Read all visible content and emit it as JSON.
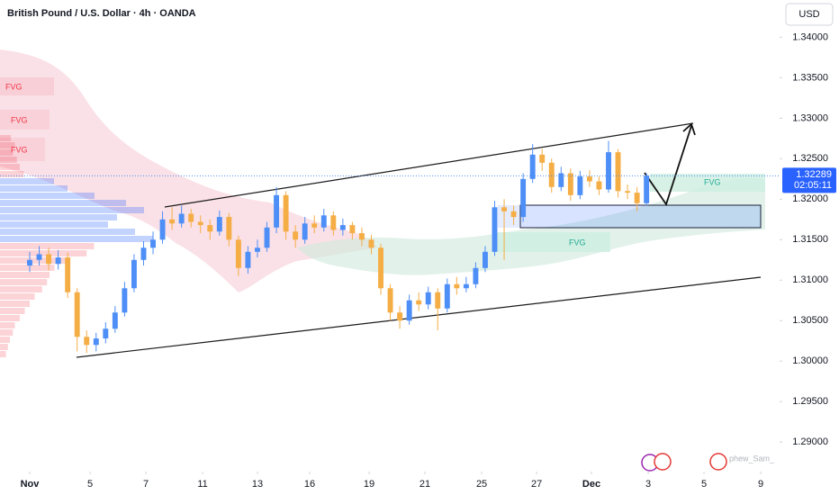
{
  "chart_data": {
    "type": "candlestick",
    "title": "British Pound / U.S. Dollar · 4h · OANDA",
    "currency": "USD",
    "watermark": "phew_Sam_",
    "annotations": [
      "FVG",
      "FVG",
      "FVG",
      "FVG",
      "FVG"
    ],
    "last_price": 1.32289,
    "countdown": "02:05:11",
    "up_color": "#4d8ef7",
    "down_color": "#f5ad45",
    "grid": false,
    "xlim": [
      -3.13,
      78.93
    ],
    "xticks": [
      {
        "value": 0,
        "label": "Nov"
      },
      {
        "value": 6.36,
        "label": "5"
      },
      {
        "value": 12.24,
        "label": "7"
      },
      {
        "value": 18.22,
        "label": "11"
      },
      {
        "value": 24.0,
        "label": "13"
      },
      {
        "value": 29.51,
        "label": "16"
      },
      {
        "value": 35.77,
        "label": "19"
      },
      {
        "value": 41.65,
        "label": "21"
      },
      {
        "value": 47.63,
        "label": "25"
      },
      {
        "value": 53.42,
        "label": "27"
      },
      {
        "value": 59.2,
        "label": "Dec"
      },
      {
        "value": 65.18,
        "label": "3"
      },
      {
        "value": 71.06,
        "label": "5"
      },
      {
        "value": 77.04,
        "label": "9"
      }
    ],
    "ylim": [
      1.2868,
      1.3446
    ],
    "yticks": [
      {
        "value": 1.29,
        "label": "1.29000"
      },
      {
        "value": 1.295,
        "label": "1.29500"
      },
      {
        "value": 1.3,
        "label": "1.30000"
      },
      {
        "value": 1.305,
        "label": "1.30500"
      },
      {
        "value": 1.31,
        "label": "1.31000"
      },
      {
        "value": 1.315,
        "label": "1.31500"
      },
      {
        "value": 1.32,
        "label": "1.32000"
      },
      {
        "value": 1.325,
        "label": "1.32500"
      },
      {
        "value": 1.33,
        "label": "1.33000"
      },
      {
        "value": 1.335,
        "label": "1.33500"
      },
      {
        "value": 1.34,
        "label": "1.34000"
      }
    ],
    "open": [
      1.3118,
      1.3125,
      1.3132,
      1.312,
      1.3128,
      1.3085,
      1.303,
      1.302,
      1.3028,
      1.304,
      1.306,
      1.309,
      1.3125,
      1.314,
      1.315,
      1.3175,
      1.317,
      1.3182,
      1.3172,
      1.3168,
      1.316,
      1.3178,
      1.315,
      1.3115,
      1.3135,
      1.314,
      1.3165,
      1.3205,
      1.316,
      1.315,
      1.317,
      1.3165,
      1.318,
      1.3162,
      1.3168,
      1.3158,
      1.315,
      1.314,
      1.309,
      1.306,
      1.305,
      1.3075,
      1.307,
      1.3085,
      1.3065,
      1.3095,
      1.309,
      1.3095,
      1.3115,
      1.3135,
      1.319,
      1.3185,
      1.3178,
      1.3225,
      1.3255,
      1.3245,
      1.3215,
      1.3232,
      1.3205,
      1.3228,
      1.3222,
      1.3212,
      1.3258,
      1.321,
      1.3208,
      1.3195
    ],
    "high": [
      1.3135,
      1.3142,
      1.314,
      1.3137,
      1.3134,
      1.309,
      1.3038,
      1.3035,
      1.3048,
      1.3068,
      1.3098,
      1.3132,
      1.3148,
      1.316,
      1.3185,
      1.319,
      1.3192,
      1.3188,
      1.318,
      1.3175,
      1.3186,
      1.3183,
      1.3155,
      1.3142,
      1.315,
      1.3172,
      1.3215,
      1.321,
      1.3168,
      1.3178,
      1.318,
      1.3188,
      1.3185,
      1.3176,
      1.3172,
      1.3165,
      1.3156,
      1.3145,
      1.3095,
      1.3068,
      1.3082,
      1.3085,
      1.3092,
      1.309,
      1.3102,
      1.3104,
      1.3104,
      1.3122,
      1.3142,
      1.3198,
      1.32,
      1.3192,
      1.3232,
      1.3268,
      1.3262,
      1.325,
      1.324,
      1.3238,
      1.3235,
      1.3236,
      1.3228,
      1.3272,
      1.3262,
      1.3218,
      1.3215,
      1.3232
    ],
    "low": [
      1.311,
      1.3118,
      1.3112,
      1.3113,
      1.3078,
      1.3012,
      1.301,
      1.3012,
      1.3022,
      1.3035,
      1.3055,
      1.3085,
      1.3118,
      1.3132,
      1.3145,
      1.3162,
      1.3165,
      1.3165,
      1.3158,
      1.315,
      1.3155,
      1.3142,
      1.3105,
      1.3108,
      1.3128,
      1.3135,
      1.3158,
      1.315,
      1.314,
      1.3145,
      1.3158,
      1.316,
      1.3155,
      1.3155,
      1.315,
      1.3142,
      1.3132,
      1.3082,
      1.305,
      1.304,
      1.3045,
      1.3062,
      1.3064,
      1.3038,
      1.306,
      1.3082,
      1.3085,
      1.309,
      1.311,
      1.313,
      1.3125,
      1.3168,
      1.3172,
      1.322,
      1.3235,
      1.3208,
      1.321,
      1.3198,
      1.32,
      1.3215,
      1.3205,
      1.3208,
      1.3202,
      1.32,
      1.3185,
      1.3192
    ],
    "close": [
      1.3125,
      1.3132,
      1.312,
      1.3128,
      1.3085,
      1.303,
      1.302,
      1.3028,
      1.304,
      1.306,
      1.309,
      1.3125,
      1.314,
      1.315,
      1.3175,
      1.317,
      1.3182,
      1.3172,
      1.3168,
      1.316,
      1.3178,
      1.315,
      1.3115,
      1.3135,
      1.314,
      1.3165,
      1.3205,
      1.316,
      1.315,
      1.317,
      1.3165,
      1.318,
      1.3162,
      1.3168,
      1.3158,
      1.315,
      1.314,
      1.309,
      1.306,
      1.305,
      1.3075,
      1.307,
      1.3085,
      1.3065,
      1.3095,
      1.309,
      1.3095,
      1.3115,
      1.3135,
      1.319,
      1.3185,
      1.3178,
      1.3225,
      1.3255,
      1.3245,
      1.3215,
      1.3232,
      1.3205,
      1.3228,
      1.3222,
      1.3212,
      1.3258,
      1.321,
      1.3208,
      1.3195,
      1.32289
    ]
  }
}
